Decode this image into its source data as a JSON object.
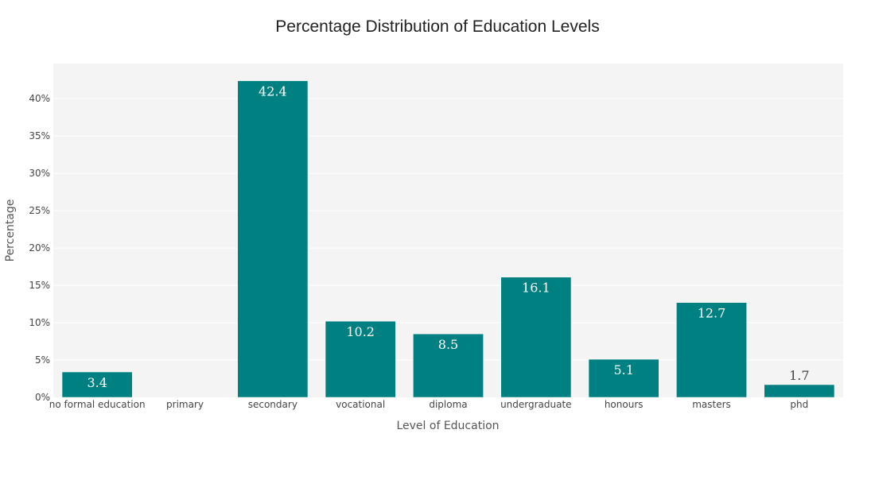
{
  "chart_data": {
    "type": "bar",
    "title": "Percentage Distribution of Education Levels",
    "xlabel": "Level of Education",
    "ylabel": "Percentage",
    "categories": [
      "no formal education",
      "primary",
      "secondary",
      "vocational",
      "diploma",
      "undergraduate",
      "honours",
      "masters",
      "phd"
    ],
    "values": [
      3.4,
      0,
      42.4,
      10.2,
      8.5,
      16.1,
      5.1,
      12.7,
      1.7
    ],
    "data_labels": [
      "3.4",
      "",
      "42.4",
      "10.2",
      "8.5",
      "16.1",
      "5.1",
      "12.7",
      "1.7"
    ],
    "ylim": [
      0,
      44.7
    ],
    "yticks": [
      0,
      5,
      10,
      15,
      20,
      25,
      30,
      35,
      40
    ],
    "ytick_labels": [
      "0%",
      "5%",
      "10%",
      "15%",
      "20%",
      "25%",
      "30%",
      "35%",
      "40%"
    ],
    "grid": true,
    "colors": {
      "bar": "#008080",
      "plot_background": "#f4f4f4",
      "grid": "#ffffff",
      "label_inside": "#ffffff",
      "label_outside": "#444444"
    }
  }
}
